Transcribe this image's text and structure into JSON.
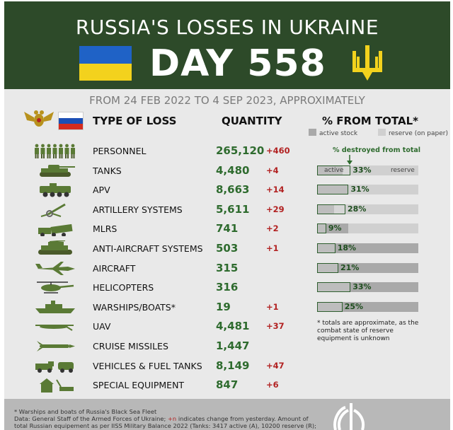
{
  "header": {
    "title": "RUSSIA'S LOSSES IN UKRAINE",
    "day_label": "DAY 558",
    "period": "FROM 24 FEB 2022 TO 4 SEP 2023, APPROXIMATELY"
  },
  "colors": {
    "header_bg": "#2d4a29",
    "quantity": "#2e6b2e",
    "change": "#b22222",
    "active_stock": "#a9a9a9",
    "reserve": "#d0d0d0"
  },
  "columns": {
    "type": "TYPE OF LOSS",
    "quantity": "QUANTITY",
    "percent": "% FROM TOTAL*"
  },
  "legend": {
    "active": "active stock",
    "reserve": "reserve (on paper)"
  },
  "destroyed_note": "% destroyed from total",
  "bar_labels": {
    "active": "active",
    "reserve": "reserve"
  },
  "rows": [
    {
      "icon": "soldiers-icon",
      "type": "PERSONNEL",
      "quantity": "265,120",
      "change": "+460"
    },
    {
      "icon": "tank-icon",
      "type": "TANKS",
      "quantity": "4,480",
      "change": "+4",
      "pct": "33%",
      "active_frac": 0.25,
      "destroyed_frac": 0.33
    },
    {
      "icon": "apv-icon",
      "type": "APV",
      "quantity": "8,663",
      "change": "+14",
      "pct": "31%",
      "active_frac": 0.31,
      "destroyed_frac": 0.31
    },
    {
      "icon": "artillery-icon",
      "type": "ARTILLERY SYSTEMS",
      "quantity": "5,611",
      "change": "+29",
      "pct": "28%",
      "active_frac": 0.17,
      "destroyed_frac": 0.28
    },
    {
      "icon": "mlrs-icon",
      "type": "MLRS",
      "quantity": "741",
      "change": "+2",
      "pct": "9%",
      "active_frac": 0.31,
      "destroyed_frac": 0.09
    },
    {
      "icon": "anti-aircraft-icon",
      "type": "ANTI-AIRCRAFT SYSTEMS",
      "quantity": "503",
      "change": "+1",
      "pct": "18%",
      "active_frac": 1.0,
      "destroyed_frac": 0.18
    },
    {
      "icon": "aircraft-icon",
      "type": "AIRCRAFT",
      "quantity": "315",
      "change": "",
      "pct": "21%",
      "active_frac": 1.0,
      "destroyed_frac": 0.21
    },
    {
      "icon": "helicopter-icon",
      "type": "HELICOPTERS",
      "quantity": "316",
      "change": "",
      "pct": "33%",
      "active_frac": 1.0,
      "destroyed_frac": 0.33
    },
    {
      "icon": "warship-icon",
      "type": "WARSHIPS/BOATS*",
      "quantity": "19",
      "change": "+1",
      "pct": "25%",
      "active_frac": 1.0,
      "destroyed_frac": 0.25
    },
    {
      "icon": "uav-icon",
      "type": "UAV",
      "quantity": "4,481",
      "change": "+37"
    },
    {
      "icon": "cruise-missile-icon",
      "type": "CRUISE MISSILES",
      "quantity": "1,447",
      "change": ""
    },
    {
      "icon": "vehicles-icon",
      "type": "VEHICLES & FUEL TANKS",
      "quantity": "8,149",
      "change": "+47"
    },
    {
      "icon": "special-equipment-icon",
      "type": "SPECIAL EQUIPMENT",
      "quantity": "847",
      "change": "+6"
    }
  ],
  "footnote_right": "* totals are approximate, as the combat state of reserve equipment is unknown",
  "footer": {
    "line1": "* Warships and boats of Russia's Black Sea Fleet",
    "line2a": "Data: General Staff of the Armed Forces of Ukraine; ",
    "line2b": "+n",
    "line2c": " indicates change from yesterday. Amount of",
    "line3": "total Russian equipement as per IISS Military Balance 2022 (Tanks: 3417 active (A), 10200 reserve (R);"
  }
}
